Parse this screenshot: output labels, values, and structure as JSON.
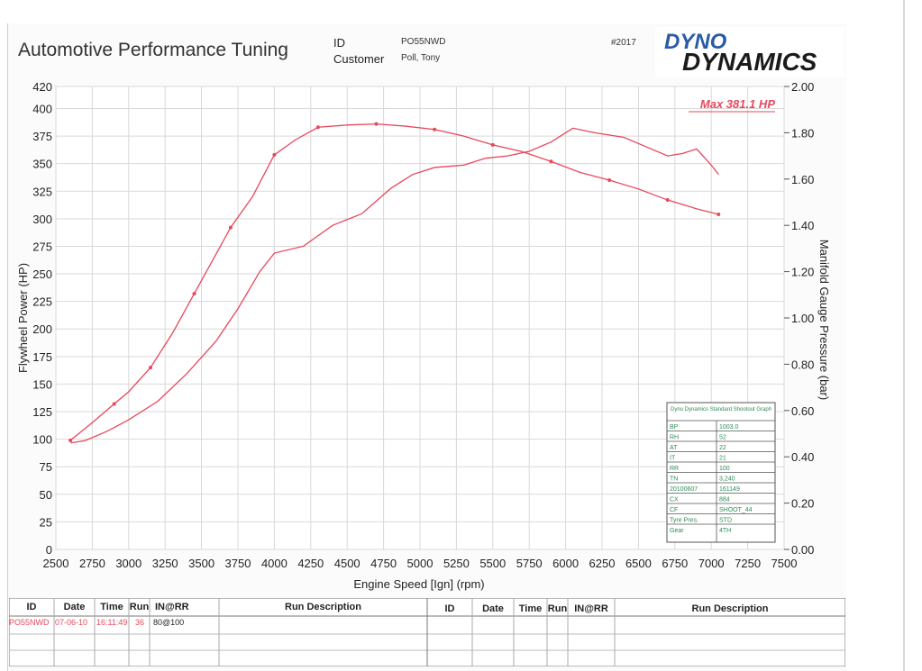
{
  "header": {
    "title": "Automotive Performance Tuning",
    "id_label": "ID",
    "id_value": "PO55NWD",
    "customer_label": "Customer",
    "customer_value": "Poll, Tony",
    "job_number": "#2017",
    "logo_line1": "DYNO",
    "logo_line2": "DYNAMICS"
  },
  "chart_data": {
    "type": "line",
    "xlabel": "Engine Speed [Ign] (rpm)",
    "ylabel": "Flywheel Power (HP)",
    "y2label": "Manifold Gauge Pressure (bar)",
    "xlim": [
      2500,
      7500
    ],
    "ylim": [
      0,
      420
    ],
    "y2lim": [
      0,
      2.0
    ],
    "x_ticks": [
      2500,
      2750,
      3000,
      3250,
      3500,
      3750,
      4000,
      4250,
      4500,
      4750,
      5000,
      5250,
      5500,
      5750,
      6000,
      6250,
      6500,
      6750,
      7000,
      7250,
      7500
    ],
    "y_ticks": [
      0,
      25,
      50,
      75,
      100,
      125,
      150,
      175,
      200,
      225,
      250,
      275,
      300,
      325,
      350,
      375,
      400,
      420
    ],
    "y2_ticks": [
      "0.00",
      "0.20",
      "0.40",
      "0.60",
      "0.80",
      "1.00",
      "1.20",
      "1.40",
      "1.60",
      "1.80",
      "2.00"
    ],
    "annotation": "Max 381.1 HP",
    "grid": true,
    "series": [
      {
        "axis": "left",
        "color": "#e8475c",
        "x": [
          2600,
          2750,
          2900,
          3000,
          3150,
          3300,
          3450,
          3600,
          3700,
          3850,
          4000,
          4150,
          4300,
          4500,
          4700,
          4900,
          5100,
          5300,
          5500,
          5700,
          5900,
          6100,
          6300,
          6500,
          6700,
          6900,
          7050
        ],
        "y": [
          99,
          115,
          132,
          143,
          165,
          196,
          232,
          268,
          292,
          320,
          358,
          372,
          383,
          385,
          386,
          384,
          381,
          375,
          367,
          361,
          352,
          342,
          335,
          327,
          317,
          309,
          304
        ]
      },
      {
        "axis": "right",
        "color": "#e8475c",
        "x": [
          2600,
          2700,
          2850,
          3000,
          3200,
          3400,
          3600,
          3750,
          3900,
          4000,
          4200,
          4400,
          4600,
          4800,
          4950,
          5100,
          5300,
          5450,
          5600,
          5750,
          5900,
          6050,
          6200,
          6400,
          6550,
          6700,
          6800,
          6900,
          7000,
          7050
        ],
        "y": [
          0.46,
          0.47,
          0.51,
          0.56,
          0.64,
          0.76,
          0.9,
          1.04,
          1.2,
          1.28,
          1.31,
          1.4,
          1.45,
          1.56,
          1.62,
          1.65,
          1.66,
          1.69,
          1.7,
          1.72,
          1.76,
          1.82,
          1.8,
          1.78,
          1.74,
          1.7,
          1.71,
          1.73,
          1.66,
          1.62
        ]
      }
    ]
  },
  "conditions_box": {
    "title": "Dyno Dynamics Standard Shootout Graph",
    "rows": [
      {
        "label": "BP",
        "value": "1003.0"
      },
      {
        "label": "RH",
        "value": "52"
      },
      {
        "label": "AT",
        "value": "22"
      },
      {
        "label": "IT",
        "value": "21"
      },
      {
        "label": "RR",
        "value": "100"
      },
      {
        "label": "TN",
        "value": "3,240"
      },
      {
        "label": "20100607",
        "value": "161149"
      },
      {
        "label": "CX",
        "value": "884"
      },
      {
        "label": "CF",
        "value": "SHOOT_44"
      },
      {
        "label": "Tyre Pres.",
        "value": "STD"
      },
      {
        "label": "Gear",
        "value": "4TH"
      }
    ]
  },
  "run_table": {
    "headers": [
      "ID",
      "Date",
      "Time",
      "Run",
      "IN@RR",
      "Run Description"
    ],
    "rows": [
      {
        "id": "PO55NWD",
        "date": "07-06-10",
        "time": "16:11:49",
        "run": "36",
        "in_rr": "80@100",
        "desc": ""
      }
    ]
  }
}
